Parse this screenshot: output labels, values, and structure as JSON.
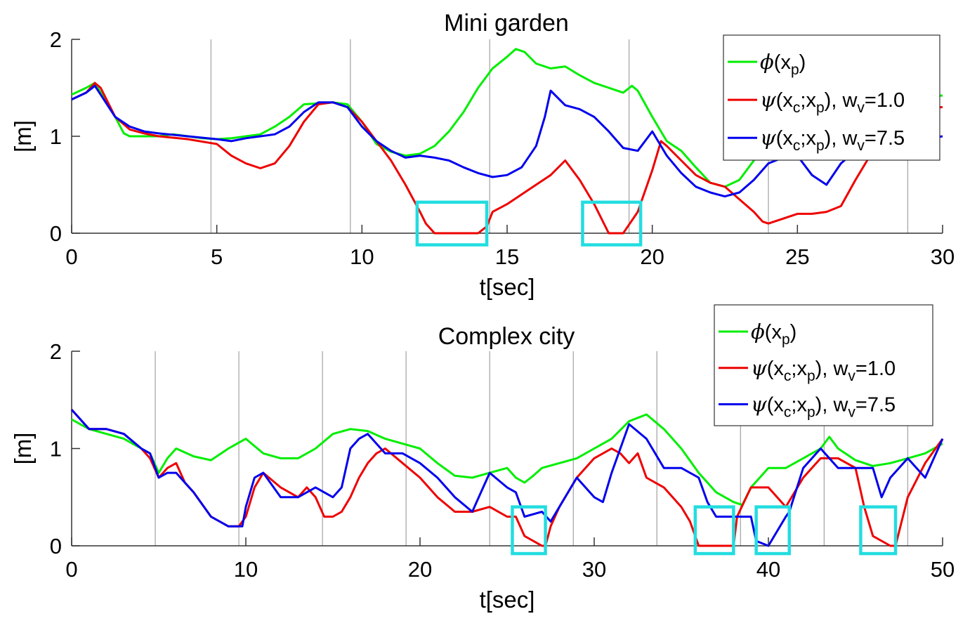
{
  "chart_data": [
    {
      "type": "line",
      "title": "Mini garden",
      "xlabel": "t[sec]",
      "ylabel": "[m]",
      "xlim": [
        0,
        30
      ],
      "ylim": [
        0,
        2
      ],
      "xticks": [
        "0",
        "5",
        "10",
        "15",
        "20",
        "25",
        "30"
      ],
      "yticks": [
        "0",
        "1",
        "2"
      ],
      "legend": {
        "placement": "top-right",
        "entries": [
          {
            "sym": "ϕ",
            "args": [
              "(x",
              "p",
              ")"
            ],
            "tail": ""
          },
          {
            "sym": "ψ",
            "args": [
              "(x",
              "c",
              ";x",
              "p",
              "), w",
              "v",
              "=1.0"
            ],
            "tail": ""
          },
          {
            "sym": "ψ",
            "args": [
              "(x",
              "c",
              ";x",
              "p",
              "), w",
              "v",
              "=7.5"
            ],
            "tail": ""
          }
        ]
      },
      "vlines": [
        4.8,
        9.6,
        14.4,
        19.2,
        24.0,
        28.8
      ],
      "highlight_boxes": [
        [
          11.9,
          14.3,
          -0.12,
          0.32
        ],
        [
          17.6,
          19.6,
          -0.12,
          0.32
        ]
      ],
      "series": [
        {
          "color": "#00ee00",
          "x": [
            0,
            0.5,
            0.8,
            1.0,
            1.5,
            1.8,
            2.0,
            2.5,
            3.0,
            3.5,
            4.0,
            4.5,
            5.0,
            5.5,
            6.0,
            6.5,
            7.0,
            7.5,
            8.0,
            9.0,
            9.5,
            10.0,
            10.5,
            11.0,
            11.5,
            12.0,
            12.5,
            13.0,
            13.5,
            14.0,
            14.5,
            15.0,
            15.3,
            15.6,
            16.0,
            16.5,
            17.0,
            17.5,
            18.0,
            18.5,
            19.0,
            19.3,
            19.5,
            20.0,
            20.5,
            21.0,
            21.5,
            22.0,
            22.5,
            23.0,
            23.5,
            24.0,
            24.5,
            25.0,
            25.5,
            26.0,
            27.0,
            28.0,
            29.0,
            30.0
          ],
          "values": [
            1.43,
            1.5,
            1.55,
            1.45,
            1.2,
            1.03,
            1.0,
            1.0,
            1.0,
            1.02,
            1.0,
            0.98,
            0.97,
            0.98,
            1.0,
            1.02,
            1.1,
            1.2,
            1.33,
            1.35,
            1.33,
            1.15,
            0.92,
            0.84,
            0.8,
            0.82,
            0.9,
            1.05,
            1.25,
            1.5,
            1.7,
            1.82,
            1.9,
            1.87,
            1.75,
            1.7,
            1.72,
            1.63,
            1.55,
            1.5,
            1.45,
            1.52,
            1.47,
            1.2,
            0.95,
            0.85,
            0.68,
            0.52,
            0.48,
            0.55,
            0.75,
            0.95,
            1.1,
            1.2,
            1.25,
            1.3,
            1.35,
            1.35,
            1.4,
            1.42
          ]
        },
        {
          "color": "#ee0000",
          "x": [
            0,
            0.5,
            0.8,
            1.0,
            1.5,
            2.0,
            2.5,
            3.0,
            4.0,
            4.8,
            5.0,
            5.5,
            6.0,
            6.5,
            7.0,
            7.5,
            8.0,
            8.5,
            9.0,
            9.5,
            10.0,
            10.5,
            11.0,
            11.5,
            12.0,
            12.2,
            12.5,
            13.0,
            13.5,
            14.0,
            14.3,
            14.5,
            15.0,
            15.5,
            16.0,
            16.5,
            17.0,
            17.5,
            18.0,
            18.5,
            19.0,
            19.5,
            20.0,
            20.3,
            20.5,
            21.0,
            21.5,
            22.0,
            22.5,
            23.0,
            23.5,
            23.8,
            24.0,
            24.5,
            25.0,
            25.5,
            26.0,
            26.5,
            27.0,
            27.5,
            28.0,
            28.5,
            29.0,
            29.5,
            30.0
          ],
          "values": [
            1.38,
            1.45,
            1.55,
            1.5,
            1.2,
            1.07,
            1.03,
            1.0,
            0.97,
            0.93,
            0.92,
            0.8,
            0.72,
            0.67,
            0.72,
            0.9,
            1.15,
            1.33,
            1.35,
            1.3,
            1.15,
            0.95,
            0.75,
            0.5,
            0.22,
            0.1,
            0.0,
            0.0,
            0.0,
            0.0,
            0.07,
            0.22,
            0.3,
            0.4,
            0.5,
            0.6,
            0.75,
            0.55,
            0.3,
            0.0,
            0.0,
            0.22,
            0.65,
            0.95,
            0.9,
            0.75,
            0.6,
            0.52,
            0.48,
            0.35,
            0.22,
            0.12,
            0.1,
            0.15,
            0.2,
            0.2,
            0.22,
            0.28,
            0.55,
            0.8,
            0.98,
            1.15,
            1.25,
            1.3,
            1.3
          ]
        },
        {
          "color": "#0000ee",
          "x": [
            0,
            0.5,
            0.8,
            1.0,
            1.5,
            2.0,
            2.5,
            3.0,
            4.0,
            5.0,
            5.5,
            6.0,
            6.5,
            7.0,
            7.5,
            8.0,
            8.5,
            9.0,
            9.5,
            10.0,
            10.5,
            11.0,
            11.5,
            12.0,
            12.5,
            13.0,
            13.5,
            14.0,
            14.5,
            15.0,
            15.5,
            16.0,
            16.3,
            16.5,
            17.0,
            17.5,
            18.0,
            18.5,
            19.0,
            19.5,
            20.0,
            20.5,
            21.0,
            21.5,
            22.0,
            22.5,
            23.0,
            23.5,
            24.0,
            24.5,
            25.0,
            25.5,
            26.0,
            26.5,
            27.0,
            27.5,
            28.0,
            29.0,
            30.0
          ],
          "values": [
            1.38,
            1.45,
            1.52,
            1.43,
            1.2,
            1.1,
            1.05,
            1.03,
            1.0,
            0.97,
            0.95,
            0.98,
            1.0,
            1.02,
            1.1,
            1.25,
            1.35,
            1.35,
            1.3,
            1.1,
            0.95,
            0.85,
            0.78,
            0.8,
            0.78,
            0.75,
            0.68,
            0.62,
            0.58,
            0.6,
            0.68,
            0.9,
            1.2,
            1.47,
            1.32,
            1.28,
            1.2,
            1.05,
            0.88,
            0.85,
            1.05,
            0.8,
            0.62,
            0.48,
            0.42,
            0.38,
            0.42,
            0.55,
            0.72,
            0.78,
            0.8,
            0.6,
            0.5,
            0.72,
            0.85,
            0.9,
            0.93,
            0.95,
            1.0
          ]
        }
      ]
    },
    {
      "type": "line",
      "title": "Complex city",
      "xlabel": "t[sec]",
      "ylabel": "[m]",
      "xlim": [
        0,
        50
      ],
      "ylim": [
        0,
        2
      ],
      "xticks": [
        "0",
        "10",
        "20",
        "30",
        "40",
        "50"
      ],
      "yticks": [
        "0",
        "1",
        "2"
      ],
      "legend": {
        "placement": "top-right",
        "entries": [
          {
            "sym": "ϕ",
            "args": [
              "(x",
              "p",
              ")"
            ],
            "tail": ""
          },
          {
            "sym": "ψ",
            "args": [
              "(x",
              "c",
              ";x",
              "p",
              "), w",
              "v",
              "=1.0"
            ],
            "tail": ""
          },
          {
            "sym": "ψ",
            "args": [
              "(x",
              "c",
              ";x",
              "p",
              "), w",
              "v",
              "=7.5"
            ],
            "tail": ""
          }
        ]
      },
      "vlines": [
        4.8,
        9.6,
        14.4,
        19.2,
        24.0,
        28.8,
        33.6,
        38.4,
        43.2,
        48.0
      ],
      "highlight_boxes": [
        [
          25.3,
          27.2,
          -0.08,
          0.4
        ],
        [
          35.8,
          38.0,
          -0.08,
          0.4
        ],
        [
          39.3,
          41.2,
          -0.08,
          0.4
        ],
        [
          45.3,
          47.3,
          -0.08,
          0.4
        ]
      ],
      "series": [
        {
          "color": "#00ee00",
          "x": [
            0,
            1,
            2,
            3,
            4,
            4.5,
            5,
            5.5,
            6,
            7,
            8,
            9,
            10,
            11,
            12,
            13,
            14,
            15,
            16,
            17,
            18,
            19,
            20,
            21,
            22,
            23,
            24,
            25,
            25.5,
            26,
            26.5,
            27,
            28,
            29,
            30,
            31,
            32,
            33,
            34,
            35,
            36,
            37,
            38,
            38.5,
            39,
            40,
            41,
            42,
            43,
            43.5,
            44,
            45,
            46,
            47,
            48,
            49,
            50
          ],
          "values": [
            1.3,
            1.2,
            1.15,
            1.1,
            1.0,
            0.95,
            0.75,
            0.9,
            1.0,
            0.92,
            0.88,
            1.0,
            1.1,
            0.95,
            0.9,
            0.9,
            1.0,
            1.15,
            1.2,
            1.18,
            1.1,
            1.05,
            1.0,
            0.85,
            0.72,
            0.7,
            0.75,
            0.8,
            0.7,
            0.65,
            0.72,
            0.8,
            0.85,
            0.9,
            1.0,
            1.1,
            1.28,
            1.35,
            1.2,
            1.0,
            0.75,
            0.55,
            0.45,
            0.42,
            0.6,
            0.8,
            0.8,
            0.9,
            1.0,
            1.12,
            1.0,
            0.88,
            0.82,
            0.85,
            0.9,
            0.95,
            1.05
          ]
        },
        {
          "color": "#ee0000",
          "x": [
            0,
            1,
            2,
            3,
            4,
            4.5,
            5,
            5.5,
            6,
            6.5,
            7,
            8,
            9,
            9.6,
            10,
            10.5,
            11,
            12,
            13,
            13.5,
            14,
            14.5,
            15,
            15.5,
            16,
            16.5,
            17,
            17.5,
            18,
            19,
            20,
            21,
            22,
            23,
            24,
            25,
            25.5,
            26,
            27,
            27.2,
            27.5,
            28,
            29,
            30,
            31,
            31.5,
            32,
            32.5,
            33,
            34,
            35,
            35.5,
            35.8,
            36,
            37,
            38,
            38.2,
            39,
            40,
            41,
            42,
            43,
            44,
            45,
            45.5,
            46,
            47,
            47.3,
            48,
            49,
            50
          ],
          "values": [
            1.4,
            1.2,
            1.2,
            1.15,
            1.0,
            0.9,
            0.7,
            0.8,
            0.85,
            0.65,
            0.55,
            0.3,
            0.2,
            0.2,
            0.3,
            0.6,
            0.75,
            0.6,
            0.5,
            0.6,
            0.5,
            0.3,
            0.3,
            0.35,
            0.5,
            0.7,
            0.85,
            0.95,
            1.0,
            0.85,
            0.7,
            0.5,
            0.35,
            0.35,
            0.4,
            0.3,
            0.3,
            0.1,
            0.0,
            0.0,
            0.2,
            0.4,
            0.7,
            0.9,
            1.0,
            0.95,
            0.85,
            0.95,
            0.7,
            0.6,
            0.4,
            0.25,
            0.1,
            0.0,
            0.0,
            0.0,
            0.3,
            0.6,
            0.6,
            0.4,
            0.7,
            0.9,
            0.9,
            0.8,
            0.4,
            0.1,
            0.0,
            0.0,
            0.5,
            0.85,
            1.1
          ]
        },
        {
          "color": "#0000ee",
          "x": [
            0,
            1,
            2,
            3,
            4,
            4.5,
            5,
            5.5,
            6,
            6.5,
            7,
            8,
            9,
            9.8,
            10,
            10.5,
            11,
            12,
            13,
            14,
            15,
            15.5,
            16,
            16.5,
            17,
            18,
            19,
            20,
            21,
            22,
            23,
            23.5,
            24,
            25,
            25.5,
            26,
            27,
            27.5,
            28,
            29,
            30,
            30.5,
            31,
            31.5,
            32,
            33,
            34,
            35,
            36,
            36.5,
            37,
            38,
            39,
            39.3,
            40,
            41,
            41.2,
            42,
            43,
            44,
            45,
            46,
            46.5,
            47,
            48,
            49,
            50
          ],
          "values": [
            1.4,
            1.2,
            1.2,
            1.15,
            1.0,
            0.95,
            0.7,
            0.75,
            0.75,
            0.65,
            0.55,
            0.3,
            0.2,
            0.2,
            0.4,
            0.7,
            0.75,
            0.5,
            0.5,
            0.6,
            0.5,
            0.6,
            1.0,
            1.1,
            1.15,
            0.95,
            0.95,
            0.85,
            0.7,
            0.5,
            0.35,
            0.55,
            0.75,
            0.6,
            0.55,
            0.3,
            0.35,
            0.25,
            0.4,
            0.7,
            0.5,
            0.45,
            0.75,
            1.0,
            1.25,
            1.1,
            0.8,
            0.8,
            0.7,
            0.45,
            0.3,
            0.3,
            0.3,
            0.05,
            0.0,
            0.3,
            0.35,
            0.8,
            1.0,
            0.8,
            0.8,
            0.8,
            0.5,
            0.7,
            0.9,
            0.7,
            1.1
          ]
        }
      ]
    }
  ]
}
